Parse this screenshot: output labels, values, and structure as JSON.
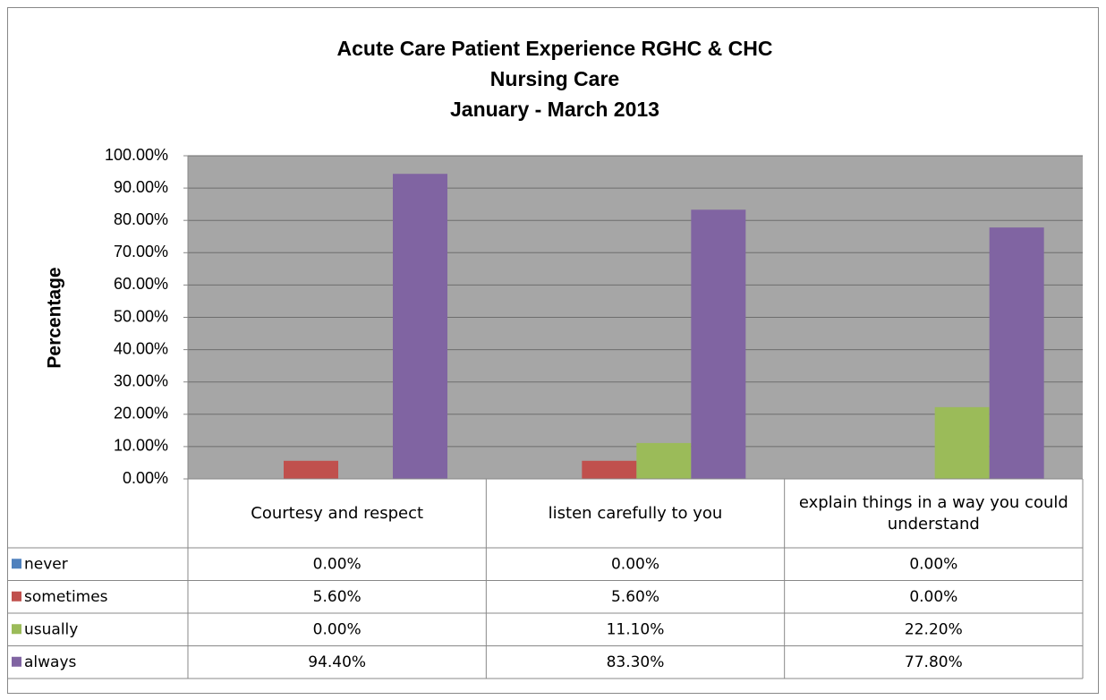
{
  "chart_data": {
    "type": "bar",
    "title": [
      "Acute Care Patient Experience RGHC & CHC",
      "Nursing Care",
      "January - March 2013"
    ],
    "y_label": "Percentage",
    "categories": [
      "Courtesy and respect",
      "listen carefully to you",
      "explain things in a way you could understand"
    ],
    "series": [
      {
        "name": "never",
        "color": "#4f81bd",
        "values": [
          0,
          0,
          0
        ],
        "value_labels": [
          "0.00%",
          "0.00%",
          "0.00%"
        ]
      },
      {
        "name": "sometimes",
        "color": "#c0504d",
        "values": [
          5.6,
          5.6,
          0
        ],
        "value_labels": [
          "5.60%",
          "5.60%",
          "0.00%"
        ]
      },
      {
        "name": "usually",
        "color": "#9bbb59",
        "values": [
          0,
          11.1,
          22.2
        ],
        "value_labels": [
          "0.00%",
          "11.10%",
          "22.20%"
        ]
      },
      {
        "name": "always",
        "color": "#8064a2",
        "values": [
          94.4,
          83.3,
          77.8
        ],
        "value_labels": [
          "94.40%",
          "83.30%",
          "77.80%"
        ]
      }
    ],
    "ylim": [
      0,
      100
    ],
    "yticks": [
      {
        "value": 0,
        "label": "0.00%"
      },
      {
        "value": 10,
        "label": "10.00%"
      },
      {
        "value": 20,
        "label": "20.00%"
      },
      {
        "value": 30,
        "label": "30.00%"
      },
      {
        "value": 40,
        "label": "40.00%"
      },
      {
        "value": 50,
        "label": "50.00%"
      },
      {
        "value": 60,
        "label": "60.00%"
      },
      {
        "value": 70,
        "label": "70.00%"
      },
      {
        "value": 80,
        "label": "80.00%"
      },
      {
        "value": 90,
        "label": "90.00%"
      },
      {
        "value": 100,
        "label": "100.00%"
      }
    ],
    "grid": true
  }
}
